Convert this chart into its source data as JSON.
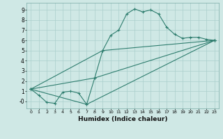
{
  "xlabel": "Humidex (Indice chaleur)",
  "xlim": [
    -0.5,
    23.5
  ],
  "ylim": [
    -0.7,
    9.7
  ],
  "xticks": [
    0,
    1,
    2,
    3,
    4,
    5,
    6,
    7,
    8,
    9,
    10,
    11,
    12,
    13,
    14,
    15,
    16,
    17,
    18,
    19,
    20,
    21,
    22,
    23
  ],
  "yticks": [
    0,
    1,
    2,
    3,
    4,
    5,
    6,
    7,
    8,
    9
  ],
  "ytick_labels": [
    "-0",
    "1",
    "2",
    "3",
    "4",
    "5",
    "6",
    "7",
    "8",
    "9"
  ],
  "bg_color": "#cfe8e5",
  "grid_color": "#aacfcc",
  "line_color": "#2e7d6e",
  "lines": [
    {
      "x": [
        0,
        1,
        2,
        3,
        4,
        5,
        6,
        7,
        8,
        9,
        10,
        11,
        12,
        13,
        14,
        15,
        16,
        17,
        18,
        19,
        20,
        21,
        22,
        23
      ],
      "y": [
        1.2,
        0.6,
        -0.1,
        -0.2,
        0.9,
        1.0,
        0.8,
        -0.3,
        2.3,
        5.0,
        6.5,
        7.0,
        8.6,
        9.1,
        8.8,
        9.0,
        8.6,
        7.3,
        6.6,
        6.2,
        6.3,
        6.3,
        6.1,
        6.0
      ]
    },
    {
      "x": [
        0,
        7,
        23
      ],
      "y": [
        1.2,
        -0.3,
        6.0
      ]
    },
    {
      "x": [
        0,
        8,
        23
      ],
      "y": [
        1.2,
        2.3,
        6.0
      ]
    },
    {
      "x": [
        0,
        9,
        23
      ],
      "y": [
        1.2,
        5.0,
        6.0
      ]
    }
  ]
}
